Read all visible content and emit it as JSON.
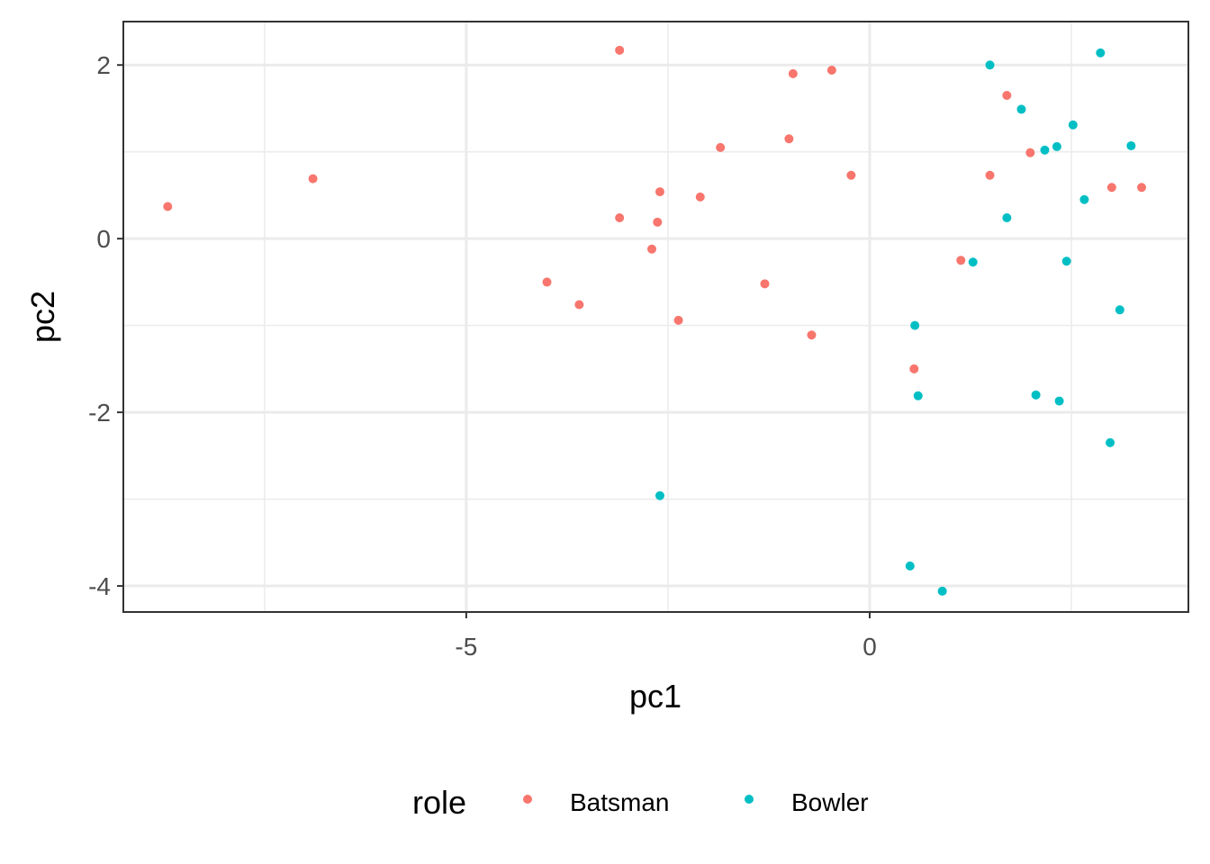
{
  "chart_data": {
    "type": "scatter",
    "xlabel": "pc1",
    "ylabel": "pc2",
    "xlim": [
      -9.25,
      3.95
    ],
    "ylim": [
      -4.3,
      2.5
    ],
    "x_ticks": [
      -5,
      0
    ],
    "x_tick_labels": [
      "-5",
      "0"
    ],
    "y_ticks": [
      2,
      0,
      -2,
      -4
    ],
    "y_tick_labels": [
      "2",
      "0",
      "-2",
      "-4"
    ],
    "grid": true,
    "legend": {
      "title": "role",
      "position": "bottom"
    },
    "series": [
      {
        "name": "Batsman",
        "color": "#F8766D",
        "points": [
          [
            -8.7,
            0.37
          ],
          [
            -6.9,
            0.69
          ],
          [
            -3.1,
            2.17
          ],
          [
            -0.95,
            1.9
          ],
          [
            -0.47,
            1.94
          ],
          [
            -1.0,
            1.15
          ],
          [
            -1.85,
            1.05
          ],
          [
            -0.23,
            0.73
          ],
          [
            -2.6,
            0.54
          ],
          [
            -2.1,
            0.48
          ],
          [
            -3.1,
            0.24
          ],
          [
            -2.63,
            0.19
          ],
          [
            -2.7,
            -0.12
          ],
          [
            -4.0,
            -0.5
          ],
          [
            -3.6,
            -0.76
          ],
          [
            -1.3,
            -0.52
          ],
          [
            -2.37,
            -0.94
          ],
          [
            -0.72,
            -1.11
          ],
          [
            1.13,
            -0.25
          ],
          [
            0.55,
            -1.5
          ],
          [
            1.7,
            1.65
          ],
          [
            1.49,
            0.73
          ],
          [
            1.99,
            0.99
          ],
          [
            3.0,
            0.59
          ],
          [
            3.37,
            0.59
          ]
        ]
      },
      {
        "name": "Bowler",
        "color": "#00BFC4",
        "points": [
          [
            1.49,
            2.0
          ],
          [
            2.86,
            2.14
          ],
          [
            1.88,
            1.49
          ],
          [
            2.52,
            1.31
          ],
          [
            3.24,
            1.07
          ],
          [
            2.17,
            1.02
          ],
          [
            2.32,
            1.06
          ],
          [
            2.66,
            0.45
          ],
          [
            1.7,
            0.24
          ],
          [
            1.28,
            -0.27
          ],
          [
            2.44,
            -0.26
          ],
          [
            3.1,
            -0.82
          ],
          [
            0.56,
            -1.0
          ],
          [
            0.6,
            -1.81
          ],
          [
            2.06,
            -1.8
          ],
          [
            2.35,
            -1.87
          ],
          [
            2.98,
            -2.35
          ],
          [
            -2.6,
            -2.96
          ],
          [
            0.5,
            -3.77
          ],
          [
            0.9,
            -4.06
          ]
        ]
      }
    ]
  }
}
